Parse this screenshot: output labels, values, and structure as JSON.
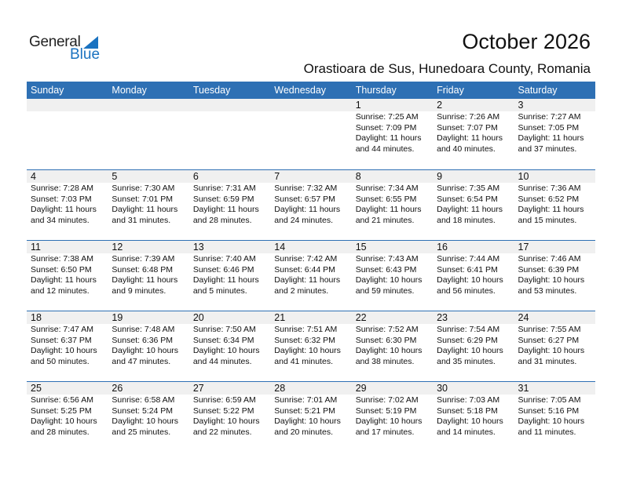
{
  "logo": {
    "text1": "General",
    "text2": "Blue"
  },
  "title": "October 2026",
  "subtitle": "Orastioara de Sus, Hunedoara County, Romania",
  "days": [
    "Sunday",
    "Monday",
    "Tuesday",
    "Wednesday",
    "Thursday",
    "Friday",
    "Saturday"
  ],
  "weeks": [
    [
      null,
      null,
      null,
      null,
      {
        "day": "1",
        "sunrise": "Sunrise: 7:25 AM",
        "sunset": "Sunset: 7:09 PM",
        "daylight1": "Daylight: 11 hours",
        "daylight2": "and 44 minutes."
      },
      {
        "day": "2",
        "sunrise": "Sunrise: 7:26 AM",
        "sunset": "Sunset: 7:07 PM",
        "daylight1": "Daylight: 11 hours",
        "daylight2": "and 40 minutes."
      },
      {
        "day": "3",
        "sunrise": "Sunrise: 7:27 AM",
        "sunset": "Sunset: 7:05 PM",
        "daylight1": "Daylight: 11 hours",
        "daylight2": "and 37 minutes."
      }
    ],
    [
      {
        "day": "4",
        "sunrise": "Sunrise: 7:28 AM",
        "sunset": "Sunset: 7:03 PM",
        "daylight1": "Daylight: 11 hours",
        "daylight2": "and 34 minutes."
      },
      {
        "day": "5",
        "sunrise": "Sunrise: 7:30 AM",
        "sunset": "Sunset: 7:01 PM",
        "daylight1": "Daylight: 11 hours",
        "daylight2": "and 31 minutes."
      },
      {
        "day": "6",
        "sunrise": "Sunrise: 7:31 AM",
        "sunset": "Sunset: 6:59 PM",
        "daylight1": "Daylight: 11 hours",
        "daylight2": "and 28 minutes."
      },
      {
        "day": "7",
        "sunrise": "Sunrise: 7:32 AM",
        "sunset": "Sunset: 6:57 PM",
        "daylight1": "Daylight: 11 hours",
        "daylight2": "and 24 minutes."
      },
      {
        "day": "8",
        "sunrise": "Sunrise: 7:34 AM",
        "sunset": "Sunset: 6:55 PM",
        "daylight1": "Daylight: 11 hours",
        "daylight2": "and 21 minutes."
      },
      {
        "day": "9",
        "sunrise": "Sunrise: 7:35 AM",
        "sunset": "Sunset: 6:54 PM",
        "daylight1": "Daylight: 11 hours",
        "daylight2": "and 18 minutes."
      },
      {
        "day": "10",
        "sunrise": "Sunrise: 7:36 AM",
        "sunset": "Sunset: 6:52 PM",
        "daylight1": "Daylight: 11 hours",
        "daylight2": "and 15 minutes."
      }
    ],
    [
      {
        "day": "11",
        "sunrise": "Sunrise: 7:38 AM",
        "sunset": "Sunset: 6:50 PM",
        "daylight1": "Daylight: 11 hours",
        "daylight2": "and 12 minutes."
      },
      {
        "day": "12",
        "sunrise": "Sunrise: 7:39 AM",
        "sunset": "Sunset: 6:48 PM",
        "daylight1": "Daylight: 11 hours",
        "daylight2": "and 9 minutes."
      },
      {
        "day": "13",
        "sunrise": "Sunrise: 7:40 AM",
        "sunset": "Sunset: 6:46 PM",
        "daylight1": "Daylight: 11 hours",
        "daylight2": "and 5 minutes."
      },
      {
        "day": "14",
        "sunrise": "Sunrise: 7:42 AM",
        "sunset": "Sunset: 6:44 PM",
        "daylight1": "Daylight: 11 hours",
        "daylight2": "and 2 minutes."
      },
      {
        "day": "15",
        "sunrise": "Sunrise: 7:43 AM",
        "sunset": "Sunset: 6:43 PM",
        "daylight1": "Daylight: 10 hours",
        "daylight2": "and 59 minutes."
      },
      {
        "day": "16",
        "sunrise": "Sunrise: 7:44 AM",
        "sunset": "Sunset: 6:41 PM",
        "daylight1": "Daylight: 10 hours",
        "daylight2": "and 56 minutes."
      },
      {
        "day": "17",
        "sunrise": "Sunrise: 7:46 AM",
        "sunset": "Sunset: 6:39 PM",
        "daylight1": "Daylight: 10 hours",
        "daylight2": "and 53 minutes."
      }
    ],
    [
      {
        "day": "18",
        "sunrise": "Sunrise: 7:47 AM",
        "sunset": "Sunset: 6:37 PM",
        "daylight1": "Daylight: 10 hours",
        "daylight2": "and 50 minutes."
      },
      {
        "day": "19",
        "sunrise": "Sunrise: 7:48 AM",
        "sunset": "Sunset: 6:36 PM",
        "daylight1": "Daylight: 10 hours",
        "daylight2": "and 47 minutes."
      },
      {
        "day": "20",
        "sunrise": "Sunrise: 7:50 AM",
        "sunset": "Sunset: 6:34 PM",
        "daylight1": "Daylight: 10 hours",
        "daylight2": "and 44 minutes."
      },
      {
        "day": "21",
        "sunrise": "Sunrise: 7:51 AM",
        "sunset": "Sunset: 6:32 PM",
        "daylight1": "Daylight: 10 hours",
        "daylight2": "and 41 minutes."
      },
      {
        "day": "22",
        "sunrise": "Sunrise: 7:52 AM",
        "sunset": "Sunset: 6:30 PM",
        "daylight1": "Daylight: 10 hours",
        "daylight2": "and 38 minutes."
      },
      {
        "day": "23",
        "sunrise": "Sunrise: 7:54 AM",
        "sunset": "Sunset: 6:29 PM",
        "daylight1": "Daylight: 10 hours",
        "daylight2": "and 35 minutes."
      },
      {
        "day": "24",
        "sunrise": "Sunrise: 7:55 AM",
        "sunset": "Sunset: 6:27 PM",
        "daylight1": "Daylight: 10 hours",
        "daylight2": "and 31 minutes."
      }
    ],
    [
      {
        "day": "25",
        "sunrise": "Sunrise: 6:56 AM",
        "sunset": "Sunset: 5:25 PM",
        "daylight1": "Daylight: 10 hours",
        "daylight2": "and 28 minutes."
      },
      {
        "day": "26",
        "sunrise": "Sunrise: 6:58 AM",
        "sunset": "Sunset: 5:24 PM",
        "daylight1": "Daylight: 10 hours",
        "daylight2": "and 25 minutes."
      },
      {
        "day": "27",
        "sunrise": "Sunrise: 6:59 AM",
        "sunset": "Sunset: 5:22 PM",
        "daylight1": "Daylight: 10 hours",
        "daylight2": "and 22 minutes."
      },
      {
        "day": "28",
        "sunrise": "Sunrise: 7:01 AM",
        "sunset": "Sunset: 5:21 PM",
        "daylight1": "Daylight: 10 hours",
        "daylight2": "and 20 minutes."
      },
      {
        "day": "29",
        "sunrise": "Sunrise: 7:02 AM",
        "sunset": "Sunset: 5:19 PM",
        "daylight1": "Daylight: 10 hours",
        "daylight2": "and 17 minutes."
      },
      {
        "day": "30",
        "sunrise": "Sunrise: 7:03 AM",
        "sunset": "Sunset: 5:18 PM",
        "daylight1": "Daylight: 10 hours",
        "daylight2": "and 14 minutes."
      },
      {
        "day": "31",
        "sunrise": "Sunrise: 7:05 AM",
        "sunset": "Sunset: 5:16 PM",
        "daylight1": "Daylight: 10 hours",
        "daylight2": "and 11 minutes."
      }
    ]
  ]
}
